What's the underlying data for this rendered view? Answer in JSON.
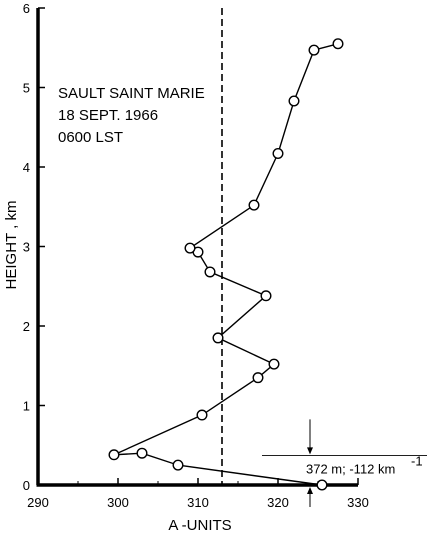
{
  "chart_data": {
    "type": "scatter",
    "title": "",
    "annotation_lines": [
      "SAULT SAINT MARIE",
      "18 SEPT. 1966",
      "0600 LST"
    ],
    "xlabel": "A -UNITS",
    "ylabel": "HEIGHT , km",
    "xlim": [
      290,
      330
    ],
    "ylim": [
      0,
      6
    ],
    "x_ticks": [
      "290",
      "300",
      "310",
      "320",
      "330"
    ],
    "y_ticks": [
      "0",
      "1",
      "2",
      "3",
      "4",
      "5",
      "6"
    ],
    "grid": false,
    "reference_line": {
      "x": 313,
      "style": "dashed"
    },
    "series": [
      {
        "x": [
          325.5,
          307.5,
          303,
          299.5,
          310.5,
          317.5,
          319.5,
          312.5,
          318.5,
          311.5,
          310,
          309,
          317,
          320,
          322,
          324.5,
          327.5
        ],
        "y": [
          0,
          0.25,
          0.4,
          0.38,
          0.88,
          1.35,
          1.52,
          1.85,
          2.38,
          2.68,
          2.93,
          2.98,
          3.52,
          4.17,
          4.83,
          5.47,
          5.55
        ]
      }
    ],
    "annotation": {
      "text": "372 m; -112 km",
      "superscript": "-1",
      "x_range": [
        323,
        330
      ],
      "y_top": 0.372,
      "y_bottom": 0
    }
  },
  "axes": {
    "xlabel": "A -UNITS",
    "ylabel": "HEIGHT , km"
  }
}
